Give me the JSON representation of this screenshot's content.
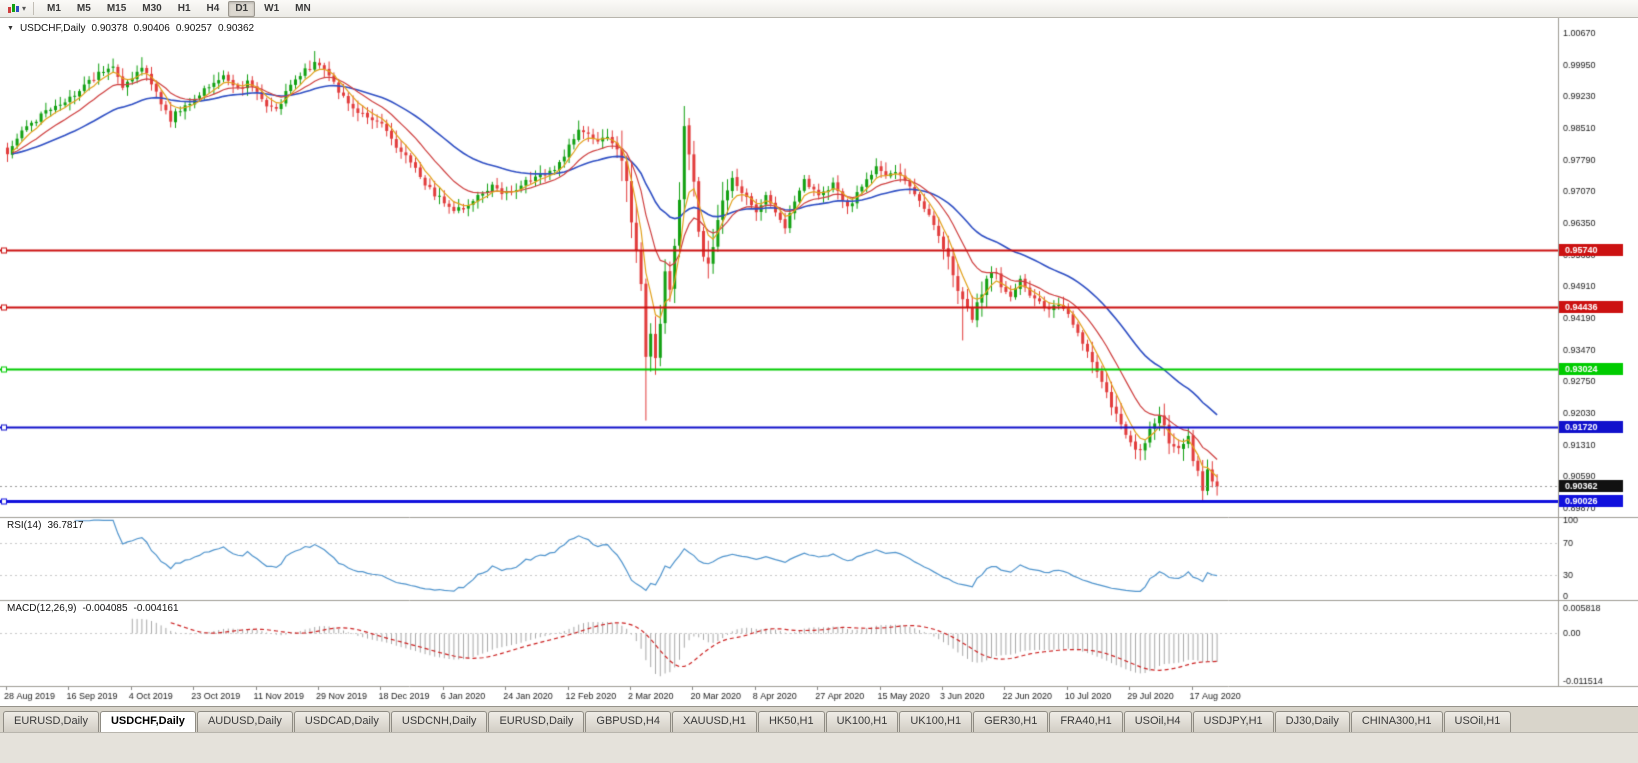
{
  "icons": {
    "collapse": "▼",
    "caret": "▾"
  },
  "toolbar": {
    "active_timeframe": "D1",
    "timeframes": [
      "M1",
      "M5",
      "M15",
      "M30",
      "H1",
      "H4",
      "D1",
      "W1",
      "MN"
    ]
  },
  "main_chart": {
    "symbol": "USDCHF,Daily",
    "open": "0.90378",
    "high": "0.90406",
    "low": "0.90257",
    "close": "0.90362"
  },
  "rsi_panel": {
    "name": "RSI(14)",
    "value": "36.7817"
  },
  "macd_panel": {
    "name": "MACD(12,26,9)",
    "value1": "-0.004085",
    "value2": "-0.004161"
  },
  "tabs": [
    {
      "label": "EURUSD,Daily",
      "active": false
    },
    {
      "label": "USDCHF,Daily",
      "active": true
    },
    {
      "label": "AUDUSD,Daily",
      "active": false
    },
    {
      "label": "USDCAD,Daily",
      "active": false
    },
    {
      "label": "USDCNH,Daily",
      "active": false
    },
    {
      "label": "EURUSD,Daily",
      "active": false
    },
    {
      "label": "GBPUSD,H4",
      "active": false
    },
    {
      "label": "XAUUSD,H1",
      "active": false
    },
    {
      "label": "HK50,H1",
      "active": false
    },
    {
      "label": "UK100,H1",
      "active": false
    },
    {
      "label": "UK100,H1",
      "active": false
    },
    {
      "label": "GER30,H1",
      "active": false
    },
    {
      "label": "FRA40,H1",
      "active": false
    },
    {
      "label": "USOil,H4",
      "active": false
    },
    {
      "label": "USDJPY,H1",
      "active": false
    },
    {
      "label": "DJ30,Daily",
      "active": false
    },
    {
      "label": "CHINA300,H1",
      "active": false
    },
    {
      "label": "USOil,H1",
      "active": false
    }
  ],
  "chart_data": {
    "type": "candlestick",
    "symbol": "USDCHF",
    "timeframe": "Daily",
    "title": "USDCHF,Daily",
    "last_ohlc": {
      "open": 0.90378,
      "high": 0.90406,
      "low": 0.90257,
      "close": 0.90362
    },
    "price_axis": {
      "top": 1.0067,
      "step": 0.0072,
      "labels": [
        "1.00670",
        "0.99950",
        "0.99230",
        "0.98510",
        "0.97790",
        "0.97070",
        "0.96350",
        "0.95630",
        "0.94910",
        "0.94190",
        "0.93470",
        "0.92750",
        "0.92030",
        "0.91310",
        "0.90590",
        "0.89870"
      ]
    },
    "time_axis": {
      "bar_step": 13,
      "labels": [
        "28 Aug 2019",
        "16 Sep 2019",
        "4 Oct 2019",
        "23 Oct 2019",
        "11 Nov 2019",
        "29 Nov 2019",
        "18 Dec 2019",
        "6 Jan 2020",
        "24 Jan 2020",
        "12 Feb 2020",
        "2 Mar 2020",
        "20 Mar 2020",
        "8 Apr 2020",
        "27 Apr 2020",
        "15 May 2020",
        "3 Jun 2020",
        "22 Jun 2020",
        "10 Jul 2020",
        "29 Jul 2020",
        "17 Aug 2020"
      ]
    },
    "bars_total": 253,
    "close_anchors": [
      [
        0,
        0.979
      ],
      [
        2,
        0.9825
      ],
      [
        4,
        0.9855
      ],
      [
        7,
        0.988
      ],
      [
        10,
        0.99
      ],
      [
        13,
        0.992
      ],
      [
        16,
        0.995
      ],
      [
        19,
        0.9972
      ],
      [
        22,
        0.9988
      ],
      [
        24,
        0.9945
      ],
      [
        26,
        0.9968
      ],
      [
        28,
        0.9992
      ],
      [
        30,
        0.9952
      ],
      [
        32,
        0.9905
      ],
      [
        34,
        0.9872
      ],
      [
        36,
        0.9892
      ],
      [
        39,
        0.9916
      ],
      [
        42,
        0.995
      ],
      [
        45,
        0.9966
      ],
      [
        48,
        0.9938
      ],
      [
        50,
        0.9952
      ],
      [
        52,
        0.9928
      ],
      [
        54,
        0.9902
      ],
      [
        56,
        0.9892
      ],
      [
        58,
        0.9932
      ],
      [
        60,
        0.9962
      ],
      [
        62,
        0.9986
      ],
      [
        64,
        0.9996
      ],
      [
        66,
        0.9982
      ],
      [
        68,
        0.9952
      ],
      [
        70,
        0.9922
      ],
      [
        72,
        0.9895
      ],
      [
        74,
        0.9882
      ],
      [
        76,
        0.9868
      ],
      [
        78,
        0.9856
      ],
      [
        80,
        0.9822
      ],
      [
        82,
        0.98
      ],
      [
        84,
        0.9772
      ],
      [
        86,
        0.9738
      ],
      [
        88,
        0.9712
      ],
      [
        90,
        0.9692
      ],
      [
        93,
        0.9662
      ],
      [
        95,
        0.9672
      ],
      [
        97,
        0.9687
      ],
      [
        99,
        0.9702
      ],
      [
        101,
        0.9716
      ],
      [
        103,
        0.9706
      ],
      [
        106,
        0.9716
      ],
      [
        108,
        0.9731
      ],
      [
        110,
        0.9741
      ],
      [
        112,
        0.9747
      ],
      [
        114,
        0.9762
      ],
      [
        116,
        0.9792
      ],
      [
        118,
        0.9826
      ],
      [
        119,
        0.9846
      ],
      [
        121,
        0.9832
      ],
      [
        123,
        0.9821
      ],
      [
        125,
        0.9831
      ],
      [
        127,
        0.9801
      ],
      [
        129,
        0.972
      ],
      [
        130,
        0.9652
      ],
      [
        131,
        0.9562
      ],
      [
        132,
        0.9482
      ],
      [
        133,
        0.9335
      ],
      [
        134,
        0.9392
      ],
      [
        135,
        0.9312
      ],
      [
        136,
        0.9422
      ],
      [
        137,
        0.9522
      ],
      [
        138,
        0.9472
      ],
      [
        139,
        0.9582
      ],
      [
        140,
        0.9702
      ],
      [
        141,
        0.9852
      ],
      [
        142,
        0.9802
      ],
      [
        143,
        0.9722
      ],
      [
        144,
        0.9602
      ],
      [
        146,
        0.9542
      ],
      [
        148,
        0.9652
      ],
      [
        151,
        0.9742
      ],
      [
        153,
        0.9702
      ],
      [
        156,
        0.9662
      ],
      [
        158,
        0.9702
      ],
      [
        160,
        0.9662
      ],
      [
        162,
        0.9622
      ],
      [
        164,
        0.9682
      ],
      [
        166,
        0.9732
      ],
      [
        169,
        0.9702
      ],
      [
        172,
        0.9722
      ],
      [
        175,
        0.9672
      ],
      [
        178,
        0.9712
      ],
      [
        181,
        0.9762
      ],
      [
        183,
        0.9742
      ],
      [
        185,
        0.9756
      ],
      [
        187,
        0.9732
      ],
      [
        189,
        0.9702
      ],
      [
        191,
        0.9662
      ],
      [
        193,
        0.9632
      ],
      [
        195,
        0.9582
      ],
      [
        197,
        0.9522
      ],
      [
        199,
        0.9452
      ],
      [
        201,
        0.9412
      ],
      [
        203,
        0.9482
      ],
      [
        205,
        0.9532
      ],
      [
        207,
        0.9492
      ],
      [
        209,
        0.9462
      ],
      [
        211,
        0.9502
      ],
      [
        213,
        0.9472
      ],
      [
        215,
        0.9452
      ],
      [
        217,
        0.9432
      ],
      [
        219,
        0.9452
      ],
      [
        221,
        0.9422
      ],
      [
        223,
        0.9392
      ],
      [
        225,
        0.9342
      ],
      [
        227,
        0.9292
      ],
      [
        229,
        0.9252
      ],
      [
        231,
        0.9192
      ],
      [
        233,
        0.9162
      ],
      [
        234,
        0.9132
      ],
      [
        236,
        0.9112
      ],
      [
        238,
        0.9162
      ],
      [
        240,
        0.9192
      ],
      [
        242,
        0.9142
      ],
      [
        244,
        0.9122
      ],
      [
        246,
        0.9142
      ],
      [
        247,
        0.9102
      ],
      [
        248,
        0.9062
      ],
      [
        249,
        0.9032
      ],
      [
        250,
        0.9072
      ],
      [
        251,
        0.9046
      ],
      [
        252,
        0.9036
      ]
    ],
    "extremes": [
      {
        "bar": 22,
        "high": 1.0008
      },
      {
        "bar": 28,
        "high": 1.0012
      },
      {
        "bar": 64,
        "high": 1.0026
      },
      {
        "bar": 119,
        "high": 0.9868
      },
      {
        "bar": 133,
        "low": 0.9186
      },
      {
        "bar": 141,
        "high": 0.9901
      },
      {
        "bar": 199,
        "low": 0.9368
      },
      {
        "bar": 240,
        "high": 0.9206
      },
      {
        "bar": 249,
        "low": 0.9005
      }
    ],
    "volatility_zones": [
      {
        "from": 128,
        "to": 150,
        "mult": 2.4
      },
      {
        "from": 195,
        "to": 206,
        "mult": 1.6
      },
      {
        "from": 226,
        "to": 252,
        "mult": 1.4
      }
    ],
    "horizontal_lines": [
      {
        "price": 0.9574,
        "label": "0.95740",
        "color": "#cc1111",
        "width": 2
      },
      {
        "price": 0.94436,
        "label": "0.94436",
        "color": "#cc1111",
        "width": 2
      },
      {
        "price": 0.93024,
        "label": "0.93024",
        "color": "#00cc00",
        "width": 2
      },
      {
        "price": 0.9172,
        "label": "0.91720",
        "color": "#1111cc",
        "width": 2
      },
      {
        "price": 0.90026,
        "label": "0.90026",
        "color": "#1111dd",
        "width": 3
      }
    ],
    "current_price": {
      "price": 0.90362,
      "label": "0.90362",
      "color": "#111111"
    },
    "moving_averages": [
      {
        "period": 5,
        "color": "#e2a11b"
      },
      {
        "period": 13,
        "color": "#cf4040"
      },
      {
        "period": 34,
        "color": "#2f4fc4"
      }
    ],
    "rsi": {
      "period": 14,
      "last": 36.7817,
      "levels": [
        100,
        70,
        30,
        0
      ],
      "color": "#4f94cd"
    },
    "macd": {
      "fast": 12,
      "slow": 26,
      "signal": 9,
      "hist_color": "#a9a9a9",
      "signal_color": "#cc2222",
      "scale_max": 0.005818,
      "scale_min": -0.011514,
      "scale_labels": [
        "0.005818",
        "0.00",
        "-0.011514"
      ]
    },
    "colors": {
      "up": "#12a112",
      "down": "#e23c3c",
      "background": "#ffffff"
    }
  }
}
